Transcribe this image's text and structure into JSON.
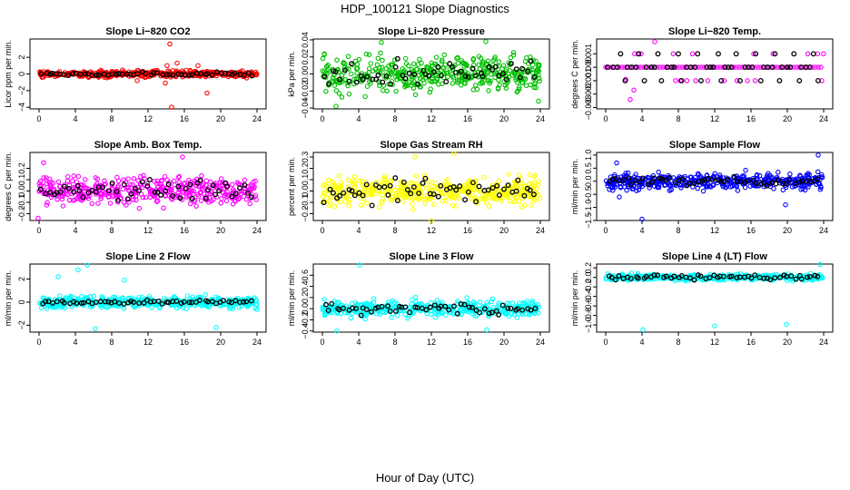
{
  "figure": {
    "title": "HDP_100121  Slope Diagnostics",
    "xlabel": "Hour of Day (UTC)"
  },
  "chart_data": [
    {
      "type": "scatter",
      "title": "Slope Li−820 CO2",
      "ylabel": "Licor ppm per min.",
      "xlim": [
        -1,
        25
      ],
      "ylim": [
        -4.2,
        4.2
      ],
      "xticks": [
        0,
        4,
        8,
        12,
        16,
        20,
        24
      ],
      "yticks": [
        -4,
        -2,
        0,
        2
      ],
      "ytick_labels": [
        "−4",
        "−2",
        "0",
        "2"
      ],
      "color": "#ff0000",
      "spread": 0.35,
      "outliers": [
        {
          "x": 14.4,
          "y": 3.6
        },
        {
          "x": 14.1,
          "y": 1.0
        },
        {
          "x": 14.6,
          "y": -4.0
        },
        {
          "x": 18.5,
          "y": -2.3
        },
        {
          "x": 17.5,
          "y": 1.0
        },
        {
          "x": 13.9,
          "y": -1.1
        },
        {
          "x": 15.2,
          "y": 1.3
        },
        {
          "x": 10.8,
          "y": -0.8
        }
      ],
      "black_spread": 0.2
    },
    {
      "type": "scatter",
      "title": "Slope Li−820 Pressure",
      "ylabel": "kPa per min.",
      "xlim": [
        -1,
        25
      ],
      "ylim": [
        -0.041,
        0.041
      ],
      "xticks": [
        0,
        4,
        8,
        12,
        16,
        20,
        24
      ],
      "yticks": [
        -0.04,
        -0.02,
        0,
        0.02,
        0.04
      ],
      "ytick_labels": [
        "−0.04",
        "−0.02",
        "0.00",
        "0.02",
        "0.04"
      ],
      "color": "#00c000",
      "spread": 0.02,
      "outliers": [
        {
          "x": 18,
          "y": 0.038
        },
        {
          "x": 6.5,
          "y": 0.037
        },
        {
          "x": 1.5,
          "y": -0.038
        },
        {
          "x": 23.8,
          "y": -0.032
        }
      ],
      "black_spread": 0.014
    },
    {
      "type": "scatter",
      "title": "Slope Li−820 Temp.",
      "ylabel": "degrees C per min.",
      "xlim": [
        -1,
        25
      ],
      "ylim": [
        -0.0031,
        0.0021
      ],
      "xticks": [
        0,
        4,
        8,
        12,
        16,
        20,
        24
      ],
      "yticks": [
        -0.003,
        -0.002,
        -0.001,
        0,
        0.001
      ],
      "ytick_labels": [
        "−0.003",
        "−0.002",
        "−0.001",
        "0.000",
        "0.001"
      ],
      "color": "#ff00ff",
      "spread": 0,
      "discrete": true,
      "outliers": [
        {
          "x": 5.4,
          "y": 0.0019
        },
        {
          "x": 3.1,
          "y": -0.0017
        },
        {
          "x": 2.7,
          "y": -0.0024
        },
        {
          "x": 2.2,
          "y": -0.0009
        }
      ],
      "black_spread": 0
    },
    {
      "type": "scatter",
      "title": "Slope Amb. Box Temp.",
      "ylabel": "degrees C per min.",
      "xlim": [
        -1,
        25
      ],
      "ylim": [
        -0.26,
        0.34
      ],
      "xticks": [
        0,
        4,
        8,
        12,
        16,
        20,
        24
      ],
      "yticks": [
        -0.2,
        -0.1,
        0,
        0.1,
        0.2
      ],
      "ytick_labels": [
        "−0.2",
        "−0.1",
        "0.0",
        "0.1",
        "0.2"
      ],
      "color": "#ff00ff",
      "spread": 0.12,
      "outliers": [
        {
          "x": 15.8,
          "y": 0.3
        },
        {
          "x": 0.5,
          "y": 0.25
        },
        {
          "x": -0.1,
          "y": -0.24
        }
      ],
      "black_spread": 0.09
    },
    {
      "type": "scatter",
      "title": "Slope Gas Stream RH",
      "ylabel": "percent per min.",
      "xlim": [
        -1,
        25
      ],
      "ylim": [
        -0.26,
        0.34
      ],
      "xticks": [
        0,
        4,
        8,
        12,
        16,
        20,
        24
      ],
      "yticks": [
        -0.2,
        -0.1,
        0,
        0.1,
        0.2,
        0.3
      ],
      "ytick_labels": [
        "−0.2",
        "−0.1",
        "0.0",
        "0.1",
        "0.2",
        "0.3"
      ],
      "color": "#ffff00",
      "spread": 0.12,
      "outliers": [
        {
          "x": 14.5,
          "y": 0.33
        },
        {
          "x": 10.2,
          "y": 0.3
        },
        {
          "x": 12,
          "y": -0.26
        }
      ],
      "black_spread": 0.1
    },
    {
      "type": "scatter",
      "title": "Slope Sample Flow",
      "ylabel": "ml/min per min.",
      "xlim": [
        -1,
        25
      ],
      "ylim": [
        -1.5,
        1.1
      ],
      "xticks": [
        0,
        4,
        8,
        12,
        16,
        20,
        24
      ],
      "yticks": [
        -1.5,
        -1,
        -0.5,
        0,
        0.5,
        1
      ],
      "ytick_labels": [
        "−1.5",
        "−1.0",
        "−0.5",
        "0.0",
        "0.5",
        "1.0"
      ],
      "color": "#0000ff",
      "spread": 0.3,
      "outliers": [
        {
          "x": 4,
          "y": -1.45
        },
        {
          "x": 23.4,
          "y": 1.0
        },
        {
          "x": 19.8,
          "y": -0.9
        },
        {
          "x": 1.2,
          "y": 0.7
        },
        {
          "x": 1.5,
          "y": -0.6
        }
      ],
      "black_spread": 0.15
    },
    {
      "type": "scatter",
      "title": "Slope Line 2 Flow",
      "ylabel": "ml/min per min.",
      "xlim": [
        -1,
        25
      ],
      "ylim": [
        -2.6,
        3.3
      ],
      "xticks": [
        0,
        4,
        8,
        12,
        16,
        20,
        24
      ],
      "yticks": [
        -2,
        0,
        2
      ],
      "ytick_labels": [
        "−2",
        "0",
        "2"
      ],
      "color": "#00ffff",
      "spread": 0.5,
      "outliers": [
        {
          "x": 5.3,
          "y": 3.2
        },
        {
          "x": 4.3,
          "y": 2.8
        },
        {
          "x": 2.1,
          "y": 2.2
        },
        {
          "x": 6.2,
          "y": -2.3
        },
        {
          "x": 19.5,
          "y": -2.2
        },
        {
          "x": 9.4,
          "y": 1.9
        }
      ],
      "black_spread": 0.15
    },
    {
      "type": "scatter",
      "title": "Slope Line 3 Flow",
      "ylabel": "ml/min per min.",
      "xlim": [
        -1,
        25
      ],
      "ylim": [
        -0.42,
        0.8
      ],
      "xticks": [
        0,
        4,
        8,
        12,
        16,
        20,
        24
      ],
      "yticks": [
        -0.4,
        -0.2,
        0,
        0.2,
        0.4,
        0.6
      ],
      "ytick_labels": [
        "−0.4",
        "−0.2",
        "0.0",
        "0.2",
        "0.4",
        "0.6"
      ],
      "color": "#00ffff",
      "spread": 0.14,
      "outliers": [
        {
          "x": 4.1,
          "y": 0.78
        },
        {
          "x": 1.6,
          "y": -0.4
        },
        {
          "x": 18.1,
          "y": -0.38
        }
      ],
      "black_spread": 0.1
    },
    {
      "type": "scatter",
      "title": "Slope Line 4 (LT) Flow",
      "ylabel": "ml/min per min.",
      "xlim": [
        -1,
        25
      ],
      "ylim": [
        -1.15,
        0.28
      ],
      "xticks": [
        0,
        4,
        8,
        12,
        16,
        20,
        24
      ],
      "yticks": [
        -1,
        -0.8,
        -0.6,
        -0.4,
        -0.2,
        0,
        0.2
      ],
      "ytick_labels": [
        "−1.0",
        "−0.8",
        "−0.6",
        "−0.4",
        "−0.2",
        "0.0",
        "0.2"
      ],
      "color": "#00ffff",
      "spread": 0.06,
      "outliers": [
        {
          "x": 4.1,
          "y": -1.1
        },
        {
          "x": 12,
          "y": -1.02
        },
        {
          "x": 19.9,
          "y": -0.99
        },
        {
          "x": 23.6,
          "y": 0.27
        }
      ],
      "black_spread": 0.05
    }
  ]
}
